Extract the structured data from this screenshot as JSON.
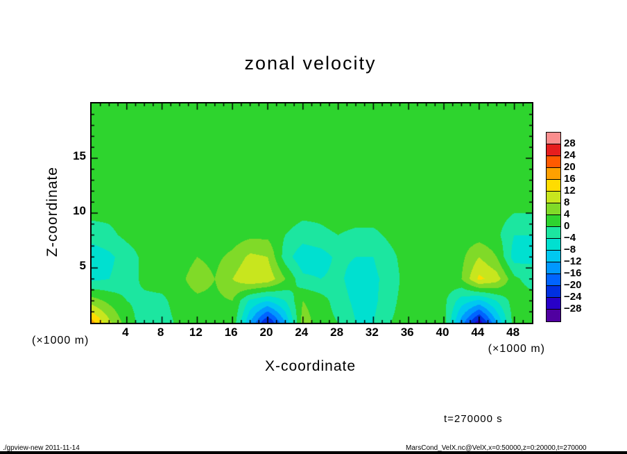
{
  "title": "zonal velocity",
  "axes": {
    "x": {
      "label": "X-coordinate",
      "unit": "(×1000 m)",
      "min": 0,
      "max": 50,
      "major_ticks": [
        4,
        8,
        12,
        16,
        20,
        24,
        28,
        32,
        36,
        40,
        44,
        48
      ],
      "major_step": 4,
      "minor_step": 1
    },
    "z": {
      "label": "Z-coordinate",
      "unit": "(×1000 m)",
      "min": 0,
      "max": 20,
      "major_ticks": [
        5,
        10,
        15
      ],
      "major_step": 5,
      "minor_step": 1
    }
  },
  "colorbar": {
    "vmin": -32,
    "step": 4,
    "labels_top_to_bottom": [
      "28",
      "24",
      "20",
      "16",
      "12",
      "8",
      "4",
      "0",
      "−4",
      "−8",
      "−12",
      "−16",
      "−20",
      "−24",
      "−28"
    ],
    "colors_low_to_high": [
      "#5000a0",
      "#2800c8",
      "#0030e0",
      "#0064ff",
      "#0098ff",
      "#00c8f0",
      "#00e0d0",
      "#1ce6a0",
      "#2ed42e",
      "#80da28",
      "#c8e61e",
      "#ffdc00",
      "#ffa000",
      "#ff5a00",
      "#e61e1e",
      "#fa8e8e"
    ]
  },
  "annotations": {
    "time": "t=270000 s"
  },
  "footer": {
    "left": "./gpview-new  2011-11-14",
    "right": "MarsCond_VelX.nc@VelX,x=0:50000,z=0:20000,t=270000"
  },
  "chart_data": {
    "type": "heatmap",
    "title": "zonal velocity",
    "xlabel": "X-coordinate (×1000 m)",
    "ylabel": "Z-coordinate (×1000 m)",
    "x": [
      0,
      2,
      4,
      6,
      8,
      10,
      12,
      14,
      16,
      18,
      20,
      22,
      24,
      26,
      28,
      30,
      32,
      34,
      36,
      38,
      40,
      42,
      44,
      46,
      48,
      50
    ],
    "z": [
      0,
      2,
      4,
      6,
      8,
      10,
      12,
      14,
      16,
      18,
      20
    ],
    "xlim": [
      0,
      50
    ],
    "zlim": [
      0,
      20
    ],
    "levels_step": 4,
    "vrange": [
      -28,
      28
    ],
    "values": [
      [
        18,
        9,
        2,
        -2,
        -2,
        1,
        2,
        2,
        3,
        -12,
        -25,
        -12,
        6,
        2,
        0,
        -4,
        -4,
        0,
        2,
        2,
        2,
        -14,
        -27,
        -12,
        2,
        2
      ],
      [
        6,
        3,
        0,
        -1,
        -1,
        2,
        3,
        3,
        4,
        -5,
        -8,
        -4,
        4,
        2,
        -2,
        -5,
        -5,
        -1,
        2,
        2,
        1,
        -6,
        -9,
        -4,
        2,
        2
      ],
      [
        -5,
        -4,
        -2,
        1,
        2,
        3,
        6,
        4,
        8,
        12,
        11,
        4,
        -3,
        -4,
        -3,
        -6,
        -5,
        -2,
        2,
        2,
        2,
        4,
        13,
        10,
        1,
        -2
      ],
      [
        -7,
        -5,
        -2,
        1,
        2,
        2,
        4,
        3,
        5,
        9,
        8,
        -2,
        -7,
        -6,
        -3,
        -4,
        -4,
        -1,
        2,
        2,
        2,
        3,
        8,
        4,
        -6,
        -5
      ],
      [
        -2,
        -1,
        1,
        2,
        2,
        2,
        2,
        2,
        2,
        3,
        3,
        0,
        -2,
        -1,
        0,
        -1,
        -1,
        1,
        2,
        2,
        2,
        2,
        2,
        1,
        -4,
        -4
      ],
      [
        1,
        1,
        2,
        2,
        2,
        2,
        2,
        2,
        2,
        2,
        2,
        2,
        1,
        1,
        2,
        2,
        2,
        2,
        2,
        2,
        2,
        2,
        2,
        2,
        0,
        0
      ],
      [
        2,
        2,
        2,
        2,
        2,
        2,
        2,
        2,
        2,
        2,
        2,
        2,
        2,
        2,
        2,
        2,
        2,
        2,
        2,
        2,
        2,
        2,
        2,
        2,
        2,
        2
      ],
      [
        2,
        2,
        2,
        2,
        2,
        2,
        2,
        2,
        2,
        2,
        2,
        2,
        2,
        2,
        2,
        2,
        2,
        2,
        2,
        2,
        2,
        2,
        2,
        2,
        2,
        2
      ],
      [
        2,
        2,
        2,
        2,
        2,
        2,
        2,
        2,
        2,
        2,
        2,
        2,
        2,
        2,
        2,
        2,
        2,
        2,
        2,
        2,
        2,
        2,
        2,
        2,
        2,
        2
      ],
      [
        2,
        2,
        2,
        2,
        2,
        2,
        2,
        2,
        2,
        2,
        2,
        2,
        2,
        2,
        2,
        2,
        2,
        2,
        2,
        2,
        2,
        2,
        2,
        2,
        2,
        2
      ],
      [
        2,
        2,
        2,
        2,
        2,
        2,
        2,
        2,
        2,
        2,
        2,
        2,
        2,
        2,
        2,
        2,
        2,
        2,
        2,
        2,
        2,
        2,
        2,
        2,
        2,
        2
      ]
    ]
  }
}
